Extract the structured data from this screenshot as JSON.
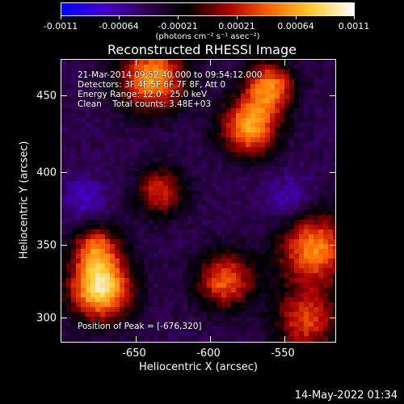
{
  "colorbar": {
    "tick_labels": [
      "-0.0011",
      "-0.00064",
      "-0.00021",
      "0.00021",
      "0.00064",
      "0.0011"
    ],
    "units": "(photons cm⁻² s⁻¹ asec⁻²)",
    "colors": [
      "#0000ff",
      "#4400cc",
      "#300050",
      "#000000",
      "#aa0000",
      "#ff6600",
      "#ffcc33",
      "#ffffff"
    ]
  },
  "title": "Reconstructed RHESSI Image",
  "info": {
    "time": "21-Mar-2014 09:52:40.000 to 09:54:12.000",
    "detectors": "Detectors: 3F 4F 5F 6F 7F 8F, Att 0",
    "energy": "Energy Range: 12.0 - 25.0 keV",
    "clean": "Clean    Total counts: 3.48E+03",
    "peak": "Position of Peak = [-676,320]"
  },
  "axes": {
    "xlabel": "Heliocentric X (arcsec)",
    "ylabel": "Heliocentric Y (arcsec)",
    "xticks": [
      "-650",
      "-600",
      "-550"
    ],
    "yticks": [
      "450",
      "400",
      "350",
      "300"
    ]
  },
  "footer": "14-May-2022 01:34"
}
